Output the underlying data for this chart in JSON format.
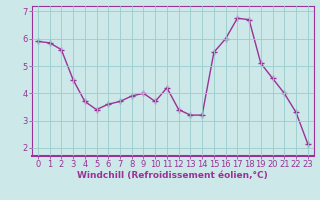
{
  "x": [
    0,
    1,
    2,
    3,
    4,
    5,
    6,
    7,
    8,
    9,
    10,
    11,
    12,
    13,
    14,
    15,
    16,
    17,
    18,
    19,
    20,
    21,
    22,
    23
  ],
  "y": [
    5.9,
    5.85,
    5.6,
    4.5,
    3.7,
    3.4,
    3.6,
    3.7,
    3.9,
    4.0,
    3.7,
    4.2,
    3.4,
    3.2,
    3.2,
    5.5,
    6.0,
    6.75,
    6.7,
    5.1,
    4.55,
    4.0,
    3.3,
    2.15
  ],
  "line_color": "#993399",
  "marker": "+",
  "markersize": 4,
  "linewidth": 1.0,
  "background_color": "#cce8e8",
  "grid_color": "#99cccc",
  "xlabel": "Windchill (Refroidissement éolien,°C)",
  "ylabel": "",
  "title": "",
  "xlim": [
    -0.5,
    23.5
  ],
  "ylim": [
    1.7,
    7.2
  ],
  "yticks": [
    2,
    3,
    4,
    5,
    6,
    7
  ],
  "xticks": [
    0,
    1,
    2,
    3,
    4,
    5,
    6,
    7,
    8,
    9,
    10,
    11,
    12,
    13,
    14,
    15,
    16,
    17,
    18,
    19,
    20,
    21,
    22,
    23
  ],
  "xlabel_fontsize": 6.5,
  "tick_fontsize": 6.0,
  "label_color": "#993399",
  "spine_color": "#993399",
  "markeredgewidth": 1.0
}
